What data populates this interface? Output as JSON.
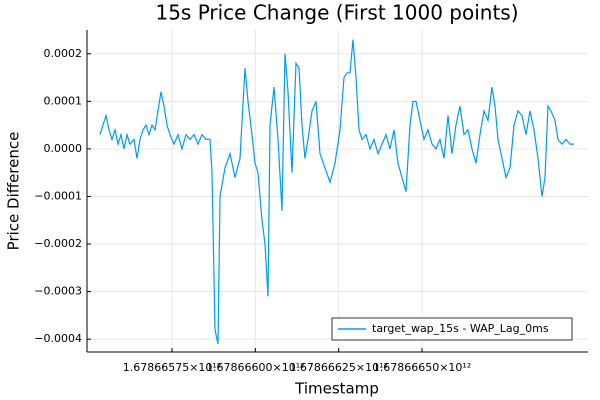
{
  "chart_data": {
    "type": "line",
    "title": "15s Price Change (First 1000 points)",
    "xlabel": "Timestamp",
    "ylabel": "Price Difference",
    "x": [
      1678665534000,
      1678665543000,
      1678665552000,
      1678665561000,
      1678665570000,
      1678665579000,
      1678665588000,
      1678665597000,
      1678665606000,
      1678665615000,
      1678665624000,
      1678665636000,
      1678665645000,
      1678665654000,
      1678665663000,
      1678665672000,
      1678665681000,
      1678665690000,
      1678665699000,
      1678665708000,
      1678665717000,
      1678665726000,
      1678665735000,
      1678665744000,
      1678665756000,
      1678665768000,
      1678665780000,
      1678665792000,
      1678665804000,
      1678665816000,
      1678665828000,
      1678665840000,
      1678665852000,
      1678665864000,
      1678665870000,
      1678665879000,
      1678665888000,
      1678665894000,
      1678665909000,
      1678665924000,
      1678665939000,
      1678665954000,
      1678665969000,
      1678665978000,
      1678665990000,
      1678665999000,
      1678666008000,
      1678666020000,
      1678666029000,
      1678666038000,
      1678666044000,
      1678666056000,
      1678666068000,
      1678666080000,
      1678666089000,
      1678666098000,
      1678666110000,
      1678666122000,
      1678666131000,
      1678666140000,
      1678666149000,
      1678666158000,
      1678666170000,
      1678666182000,
      1678666194000,
      1678666209000,
      1678666224000,
      1678666239000,
      1678666254000,
      1678666266000,
      1678666275000,
      1678666284000,
      1678666293000,
      1678666302000,
      1678666311000,
      1678666320000,
      1678666332000,
      1678666344000,
      1678666356000,
      1678666368000,
      1678666380000,
      1678666392000,
      1678666404000,
      1678666416000,
      1678666428000,
      1678666440000,
      1678666452000,
      1678666464000,
      1678666473000,
      1678666482000,
      1678666494000,
      1678666506000,
      1678666518000,
      1678666530000,
      1678666542000,
      1678666554000,
      1678666566000,
      1678666578000,
      1678666590000,
      1678666602000,
      1678666614000,
      1678666626000,
      1678666638000,
      1678666650000,
      1678666662000,
      1678666674000,
      1678666686000,
      1678666698000,
      1678666710000,
      1678666719000,
      1678666728000,
      1678666740000,
      1678666752000,
      1678666764000,
      1678666776000,
      1678666788000,
      1678666800000,
      1678666812000,
      1678666824000,
      1678666836000,
      1678666848000,
      1678666860000,
      1678666869000,
      1678666878000,
      1678666887000,
      1678666899000,
      1678666908000,
      1678666920000,
      1678666932000,
      1678666944000,
      1678666956000
    ],
    "series": [
      {
        "name": "target_wap_15s - WAP_Lag_0ms",
        "color": "#009af9",
        "values": [
          3e-05,
          5e-05,
          7e-05,
          4e-05,
          2e-05,
          4e-05,
          1e-05,
          3e-05,
          0.0,
          3e-05,
          1e-05,
          2e-05,
          -2e-05,
          2e-05,
          4e-05,
          5e-05,
          3e-05,
          5e-05,
          4e-05,
          8e-05,
          0.00012,
          9e-05,
          5e-05,
          3e-05,
          1e-05,
          3e-05,
          0.0,
          3e-05,
          2e-05,
          3e-05,
          1e-05,
          3e-05,
          2e-05,
          2e-05,
          -5e-05,
          -0.00038,
          -0.00041,
          -0.0001,
          -4e-05,
          -1e-05,
          -6e-05,
          -2e-05,
          0.00017,
          0.0001,
          3e-05,
          -3e-05,
          -5e-05,
          -0.00015,
          -0.0002,
          -0.00031,
          5e-05,
          0.00013,
          2e-05,
          -0.00013,
          0.0002,
          0.00012,
          -5e-05,
          0.00018,
          0.00017,
          5e-05,
          -2e-05,
          2e-05,
          8e-05,
          0.0001,
          -1e-05,
          -4e-05,
          -7e-05,
          -3e-05,
          4e-05,
          0.00015,
          0.00016,
          0.00016,
          0.00023,
          0.00015,
          4e-05,
          2e-05,
          3e-05,
          0.0,
          2e-05,
          -1e-05,
          1e-05,
          3e-05,
          0.0,
          4e-05,
          -3e-05,
          -6e-05,
          -9e-05,
          5e-05,
          0.0001,
          0.0001,
          6e-05,
          2e-05,
          4e-05,
          1e-05,
          0.0,
          2e-05,
          -2e-05,
          7e-05,
          -1e-05,
          5e-05,
          9e-05,
          3e-05,
          4e-05,
          0.0,
          -3e-05,
          3e-05,
          8e-05,
          6e-05,
          0.00013,
          9e-05,
          2e-05,
          -2e-05,
          -6e-05,
          -4e-05,
          5e-05,
          8e-05,
          7e-05,
          3e-05,
          8e-05,
          4e-05,
          -2e-05,
          -0.0001,
          -6e-05,
          9e-05,
          8e-05,
          6e-05,
          2e-05,
          1e-05,
          2e-05,
          1e-05,
          1e-05
        ]
      }
    ],
    "xlim": [
      1678665495000,
      1678666998000
    ],
    "xticks": [
      {
        "value": 1678665750000,
        "label": "1.67866575×10¹²"
      },
      {
        "value": 1678666000000,
        "label": "1.67866600×10¹²"
      },
      {
        "value": 1678666250000,
        "label": "1.67866625×10¹²"
      },
      {
        "value": 1678666500000,
        "label": "1.67866650×10¹²"
      }
    ],
    "ylim": [
      -0.000427,
      0.00025
    ],
    "yticks": [
      {
        "value": -0.0004,
        "label": "−0.0004"
      },
      {
        "value": -0.0003,
        "label": "−0.0003"
      },
      {
        "value": -0.0002,
        "label": "−0.0002"
      },
      {
        "value": -0.0001,
        "label": "−0.0001"
      },
      {
        "value": 0,
        "label": "0.0000"
      },
      0.0001,
      0.0002
    ],
    "grid": true,
    "legend": "bottom-right"
  }
}
